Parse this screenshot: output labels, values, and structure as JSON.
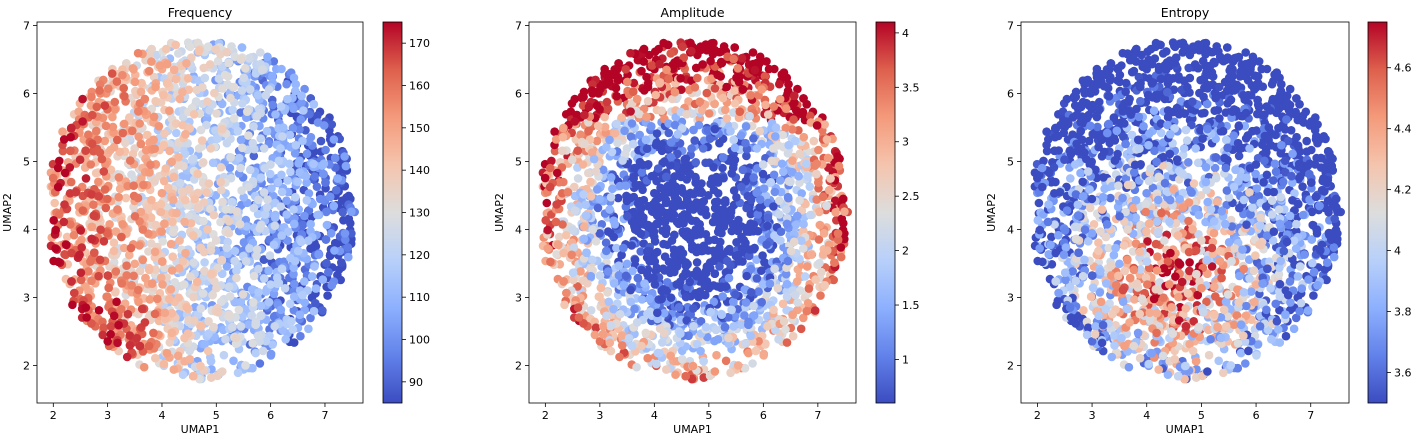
{
  "figure": {
    "background": "#ffffff"
  },
  "chart_data": [
    {
      "type": "scatter",
      "title": "Frequency",
      "xlabel": "UMAP1",
      "ylabel": "UMAP2",
      "xlim": [
        1.7,
        7.7
      ],
      "ylim": [
        1.45,
        7.05
      ],
      "xticks": [
        2,
        3,
        4,
        5,
        6,
        7
      ],
      "yticks": [
        2,
        3,
        4,
        5,
        6,
        7
      ],
      "colormap": "coolwarm",
      "color_range": [
        85,
        175
      ],
      "colorbar_ticks": [
        90,
        100,
        110,
        120,
        130,
        140,
        150,
        160,
        170
      ],
      "color_gradient": "left-high (red) to right-low (blue)",
      "grid": false
    },
    {
      "type": "scatter",
      "title": "Amplitude",
      "xlabel": "UMAP1",
      "ylabel": "UMAP2",
      "xlim": [
        1.7,
        7.7
      ],
      "ylim": [
        1.45,
        7.05
      ],
      "xticks": [
        2,
        3,
        4,
        5,
        6,
        7
      ],
      "yticks": [
        2,
        3,
        4,
        5,
        6,
        7
      ],
      "colormap": "coolwarm",
      "color_range": [
        0.6,
        4.1
      ],
      "colorbar_ticks": [
        1.0,
        1.5,
        2.0,
        2.5,
        3.0,
        3.5,
        4.0
      ],
      "color_gradient": "rim-high (red) to center-low (blue)",
      "grid": false
    },
    {
      "type": "scatter",
      "title": "Entropy",
      "xlabel": "UMAP1",
      "ylabel": "UMAP2",
      "xlim": [
        1.7,
        7.7
      ],
      "ylim": [
        1.45,
        7.05
      ],
      "xticks": [
        2,
        3,
        4,
        5,
        6,
        7
      ],
      "yticks": [
        2,
        3,
        4,
        5,
        6,
        7
      ],
      "colormap": "coolwarm",
      "color_range": [
        3.5,
        4.75
      ],
      "colorbar_ticks": [
        3.6,
        3.8,
        4.0,
        4.2,
        4.4,
        4.6
      ],
      "color_gradient": "lower-center-high (red) to rim-low (blue)",
      "grid": false
    }
  ]
}
